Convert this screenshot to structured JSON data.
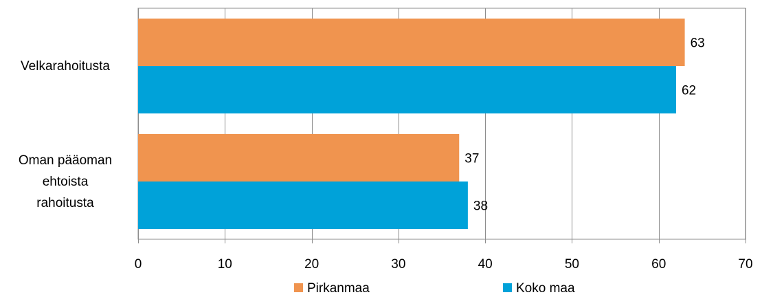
{
  "chart_data": {
    "type": "bar",
    "orientation": "horizontal",
    "categories": [
      "Velkarahoitusta",
      "Oman pääoman ehtoista rahoitusta"
    ],
    "category_lines": [
      [
        "Velkarahoitusta"
      ],
      [
        "Oman pääoman",
        "ehtoista",
        "rahoitusta"
      ]
    ],
    "series": [
      {
        "name": "Pirkanmaa",
        "color": "#f0944f",
        "values": [
          63,
          37
        ]
      },
      {
        "name": "Koko maa",
        "color": "#00a2d9",
        "values": [
          62,
          38
        ]
      }
    ],
    "xlim": [
      0,
      70
    ],
    "xticks": [
      0,
      10,
      20,
      30,
      40,
      50,
      60,
      70
    ],
    "xtick_labels": [
      "0",
      "10",
      "20",
      "30",
      "40",
      "50",
      "60",
      "70"
    ],
    "value_labels": [
      [
        "63",
        "37"
      ],
      [
        "62",
        "38"
      ]
    ],
    "grid": true,
    "legend_position": "bottom",
    "title": "",
    "xlabel": "",
    "ylabel": ""
  }
}
